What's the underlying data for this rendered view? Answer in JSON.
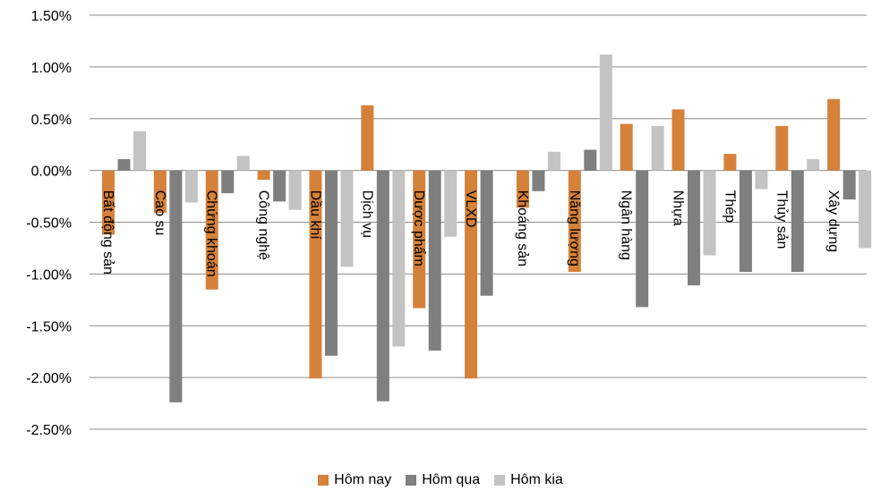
{
  "chart_data": {
    "type": "bar",
    "title": "",
    "xlabel": "",
    "ylabel": "",
    "ylim": [
      -2.5,
      1.5
    ],
    "yticks": [
      "1.50%",
      "1.00%",
      "0.50%",
      "0.00%",
      "-0.50%",
      "-1.00%",
      "-1.50%",
      "-2.00%",
      "-2.50%"
    ],
    "grid": true,
    "legend_position": "bottom",
    "categories": [
      "Bất động sản",
      "Cao su",
      "Chứng khoán",
      "Công nghệ",
      "Dầu khí",
      "Dịch vụ",
      "Dược phẩm",
      "VLXD",
      "Khoáng sản",
      "Năng lượng",
      "Ngân hàng",
      "Nhựa",
      "Thép",
      "Thủy sản",
      "Xây dựng"
    ],
    "series": [
      {
        "name": "Hôm nay",
        "color": "#D5813A",
        "values": [
          -0.62,
          -0.41,
          -1.15,
          -0.09,
          -2.01,
          0.63,
          -1.33,
          -2.01,
          -0.36,
          -0.98,
          0.45,
          0.59,
          0.16,
          0.43,
          0.69
        ]
      },
      {
        "name": "Hôm qua",
        "color": "#7F7F7F",
        "values": [
          0.11,
          -2.24,
          -0.22,
          -0.3,
          -1.79,
          -2.23,
          -1.74,
          -1.21,
          -0.2,
          0.2,
          -1.32,
          -1.11,
          -0.98,
          -0.98,
          -0.28
        ]
      },
      {
        "name": "Hôm kia",
        "color": "#C3C3C3",
        "values": [
          0.38,
          -0.31,
          0.14,
          -0.38,
          -0.93,
          -1.7,
          -0.64,
          0.0,
          0.18,
          1.12,
          0.43,
          -0.82,
          -0.18,
          0.11,
          -0.75
        ]
      }
    ]
  }
}
